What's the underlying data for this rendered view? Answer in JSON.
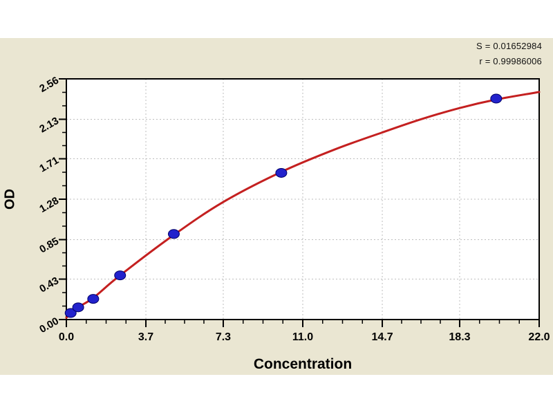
{
  "stats": {
    "s_value": "S = 0.01652984",
    "r_value": "r = 0.99986006"
  },
  "chart_data": {
    "type": "scatter",
    "title": "",
    "xlabel": "Concentration",
    "ylabel": "OD",
    "xlim": [
      0,
      22
    ],
    "ylim": [
      0,
      2.56
    ],
    "x_ticks": [
      0,
      3.7,
      7.3,
      11.0,
      14.7,
      18.3,
      22.0
    ],
    "x_tick_labels": [
      "0.0",
      "3.7",
      "7.3",
      "11.0",
      "14.7",
      "18.3",
      "22.0"
    ],
    "x_minor_per_interval": 3,
    "y_ticks": [
      0,
      0.43,
      0.85,
      1.28,
      1.71,
      2.13,
      2.56
    ],
    "y_tick_labels": [
      "0.00",
      "0.43",
      "0.85",
      "1.28",
      "1.71",
      "2.13",
      "2.56"
    ],
    "y_minor_per_interval": 2,
    "grid": "dashed gray lines at interior major ticks, plot framed on all sides",
    "legend": "none",
    "points": [
      [
        0.2,
        0.07
      ],
      [
        0.55,
        0.13
      ],
      [
        1.25,
        0.22
      ],
      [
        2.5,
        0.47
      ],
      [
        5.0,
        0.91
      ],
      [
        10.0,
        1.56
      ],
      [
        20.0,
        2.35
      ]
    ],
    "fit_curve": [
      [
        0,
        0.02
      ],
      [
        0.55,
        0.13
      ],
      [
        1.25,
        0.23
      ],
      [
        2.5,
        0.47
      ],
      [
        5.0,
        0.9
      ],
      [
        7.3,
        1.25
      ],
      [
        10.0,
        1.57
      ],
      [
        12.5,
        1.81
      ],
      [
        14.7,
        1.99
      ],
      [
        16.5,
        2.13
      ],
      [
        18.3,
        2.25
      ],
      [
        20.0,
        2.34
      ],
      [
        22.0,
        2.42
      ]
    ],
    "annotations": [
      "S = 0.01652984",
      "r = 0.99986006"
    ],
    "colors": {
      "curve": "#c42020",
      "marker_fill": "#2222cc",
      "marker_edge": "#000066",
      "background": "#eae6d2",
      "plot_bg": "#ffffff",
      "grid": "#bdbdbd",
      "axis": "#000000",
      "text": "#000000"
    }
  }
}
